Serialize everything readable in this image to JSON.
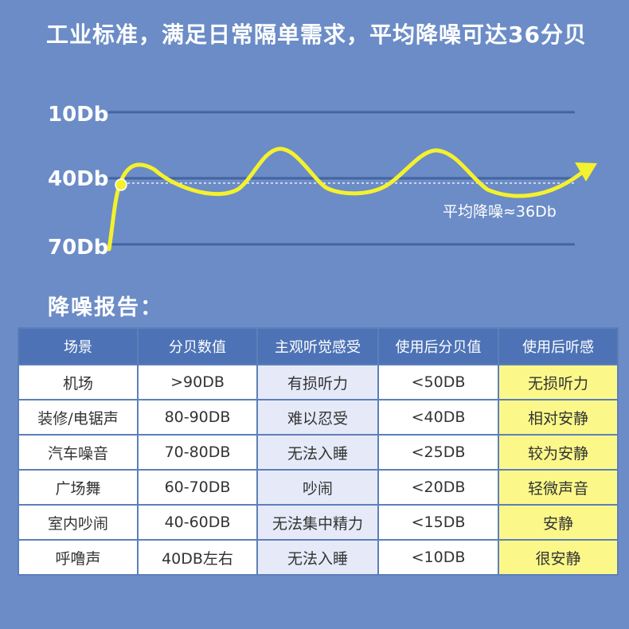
{
  "headline": "工业标准，满足日常隔单需求，平均降噪可达36分贝",
  "noise_graph": {
    "levels": [
      "10Db",
      "40Db",
      "70Db"
    ],
    "average_label": "平均降噪≈36Db",
    "curve_color": "#f4f12e",
    "line_color": "#4b6ba8"
  },
  "report": {
    "title": "降噪报告：",
    "headers": [
      "场景",
      "分贝数值",
      "主观听觉感受",
      "使用后分贝值",
      "使用后听感"
    ],
    "rows": [
      [
        "机场",
        ">90DB",
        "有损听力",
        "<50DB",
        "无损听力"
      ],
      [
        "装修/电锯声",
        "80-90DB",
        "难以忍受",
        "<40DB",
        "相对安静"
      ],
      [
        "汽车噪音",
        "70-80DB",
        "无法入睡",
        "<25DB",
        "较为安静"
      ],
      [
        "广场舞",
        "60-70DB",
        "吵闹",
        "<20DB",
        "轻微声音"
      ],
      [
        "室内吵闹",
        "40-60DB",
        "无法集中精力",
        "<15DB",
        "安静"
      ],
      [
        "呼噜声",
        "40DB左右",
        "无法入睡",
        "<10DB",
        "很安静"
      ]
    ]
  }
}
